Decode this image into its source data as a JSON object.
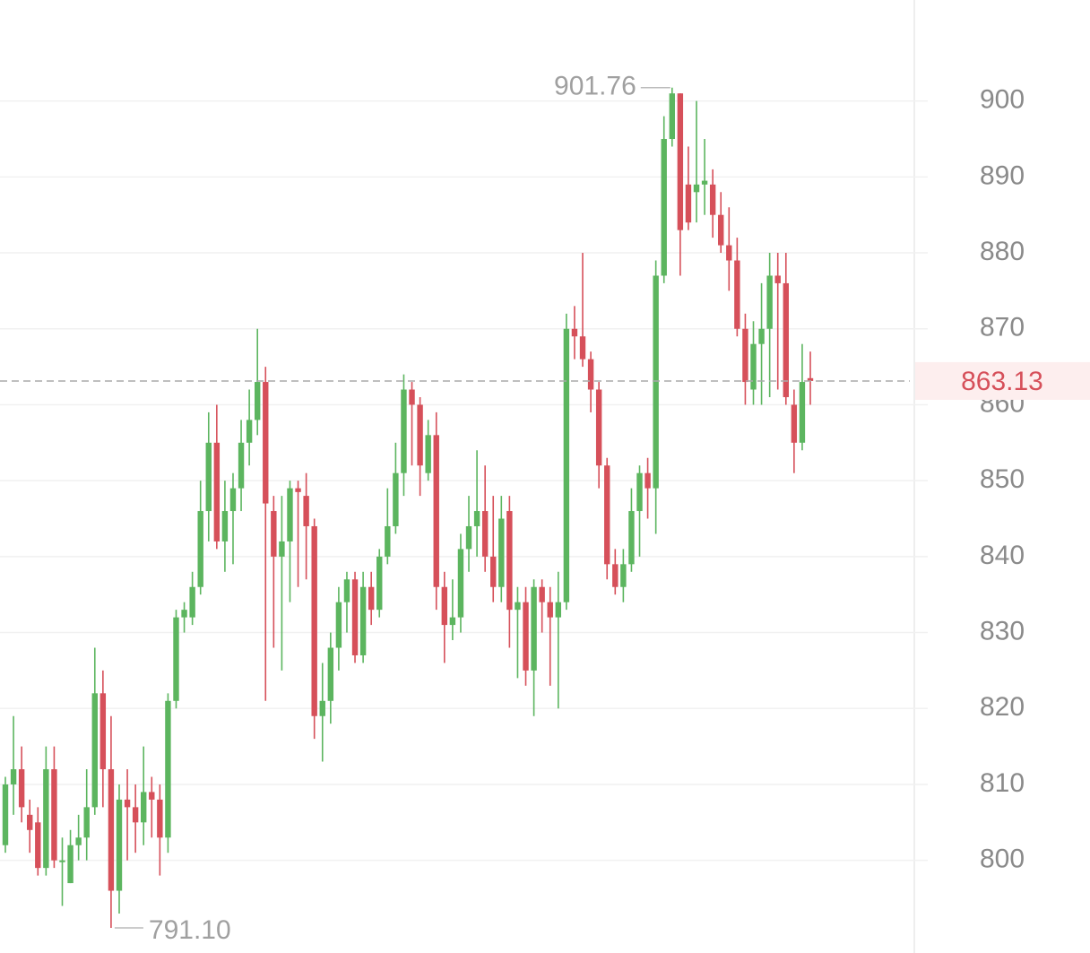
{
  "chart_data": {
    "type": "candlestick",
    "up_color": "#5cb55f",
    "down_color": "#d6505a",
    "grid": true,
    "ylim": [
      787.8,
      913.3
    ],
    "yticks": [
      800,
      810,
      820,
      830,
      840,
      850,
      860,
      870,
      880,
      890,
      900
    ],
    "open": [
      802,
      810,
      812,
      806,
      805,
      799,
      812,
      800,
      797,
      802,
      803,
      807,
      822,
      812,
      796,
      808,
      807,
      805,
      809,
      808,
      803,
      821,
      832,
      832,
      836,
      846,
      855,
      842,
      846,
      849,
      855,
      858,
      863,
      846,
      840,
      842,
      849,
      848,
      844,
      819,
      821,
      828,
      834,
      837,
      827,
      836,
      833,
      840,
      844,
      851,
      862,
      860,
      851,
      856,
      836,
      831,
      832,
      841,
      844,
      846,
      840,
      836,
      846,
      833,
      834,
      825,
      836,
      834,
      832,
      834,
      870,
      869,
      866,
      862,
      852,
      839,
      836,
      839,
      846,
      851,
      849,
      877,
      895,
      901,
      889,
      888,
      889,
      889,
      885,
      881,
      879,
      870,
      862,
      868,
      870,
      877,
      876,
      860,
      855,
      863.5
    ],
    "high": [
      811,
      819,
      815,
      808,
      807,
      815,
      815,
      803,
      804,
      806,
      812,
      828,
      825,
      819,
      810,
      812,
      810,
      815,
      811,
      810,
      822,
      833,
      834,
      838,
      850,
      859,
      860,
      850,
      851,
      858,
      862,
      870,
      865,
      848,
      848,
      850,
      850,
      851,
      845,
      826,
      830,
      836,
      838,
      838,
      838,
      838,
      841,
      849,
      855,
      864,
      863,
      861,
      858,
      859,
      838,
      837,
      843,
      848,
      854,
      852,
      848,
      848,
      848,
      836,
      836,
      837,
      837,
      836,
      838,
      872,
      873,
      880,
      867,
      863,
      853,
      841,
      841,
      849,
      852,
      853,
      879,
      898,
      901.76,
      901,
      894,
      900,
      895,
      891,
      888,
      886,
      882,
      872,
      871,
      876,
      880,
      880,
      880,
      862,
      868,
      867
    ],
    "low": [
      801,
      806,
      805,
      801,
      798,
      798,
      799,
      794,
      797,
      800,
      800,
      806,
      807,
      791.1,
      793,
      800,
      801,
      802,
      803,
      798,
      801,
      820,
      830,
      831,
      835,
      842,
      841,
      838,
      839,
      846,
      852,
      856,
      821,
      828,
      825,
      834,
      836,
      837,
      816,
      813,
      818,
      825,
      830,
      826,
      826,
      831,
      832,
      839,
      843,
      848,
      852,
      848,
      850,
      833,
      826,
      829,
      830,
      838,
      840,
      838,
      834,
      834,
      828,
      824,
      823,
      819,
      830,
      823,
      820,
      833,
      866,
      865,
      859,
      849,
      837,
      835,
      834,
      838,
      840,
      845,
      843,
      876,
      894,
      877,
      883,
      884,
      885,
      882,
      880,
      875,
      869,
      860,
      860,
      860,
      861,
      862,
      860,
      851,
      854,
      860
    ],
    "close": [
      810,
      812,
      807,
      804,
      799,
      812,
      800,
      800,
      802,
      803,
      807,
      822,
      812,
      796,
      808,
      807,
      805,
      809,
      808,
      803,
      821,
      832,
      833,
      836,
      846,
      855,
      842,
      846,
      849,
      855,
      858,
      863,
      847,
      840,
      842,
      849,
      848.5,
      844,
      819,
      821,
      828,
      834,
      837,
      827,
      836,
      833,
      840,
      844,
      851,
      862,
      860,
      852,
      856,
      836,
      831,
      832,
      841,
      844,
      846,
      840,
      836,
      845,
      833,
      834,
      825,
      836,
      834,
      832,
      834,
      870,
      869,
      866,
      862,
      852,
      839,
      836,
      839,
      846,
      851,
      849,
      877,
      895,
      901,
      883,
      884,
      889,
      889.5,
      885,
      881,
      879,
      870,
      863,
      868,
      870,
      877,
      876,
      861,
      855,
      863,
      863.13
    ],
    "annotations": [
      {
        "value": 901.76
      },
      {
        "value": 791.1,
        "label": "791.10"
      }
    ],
    "last_price": 863.13
  }
}
